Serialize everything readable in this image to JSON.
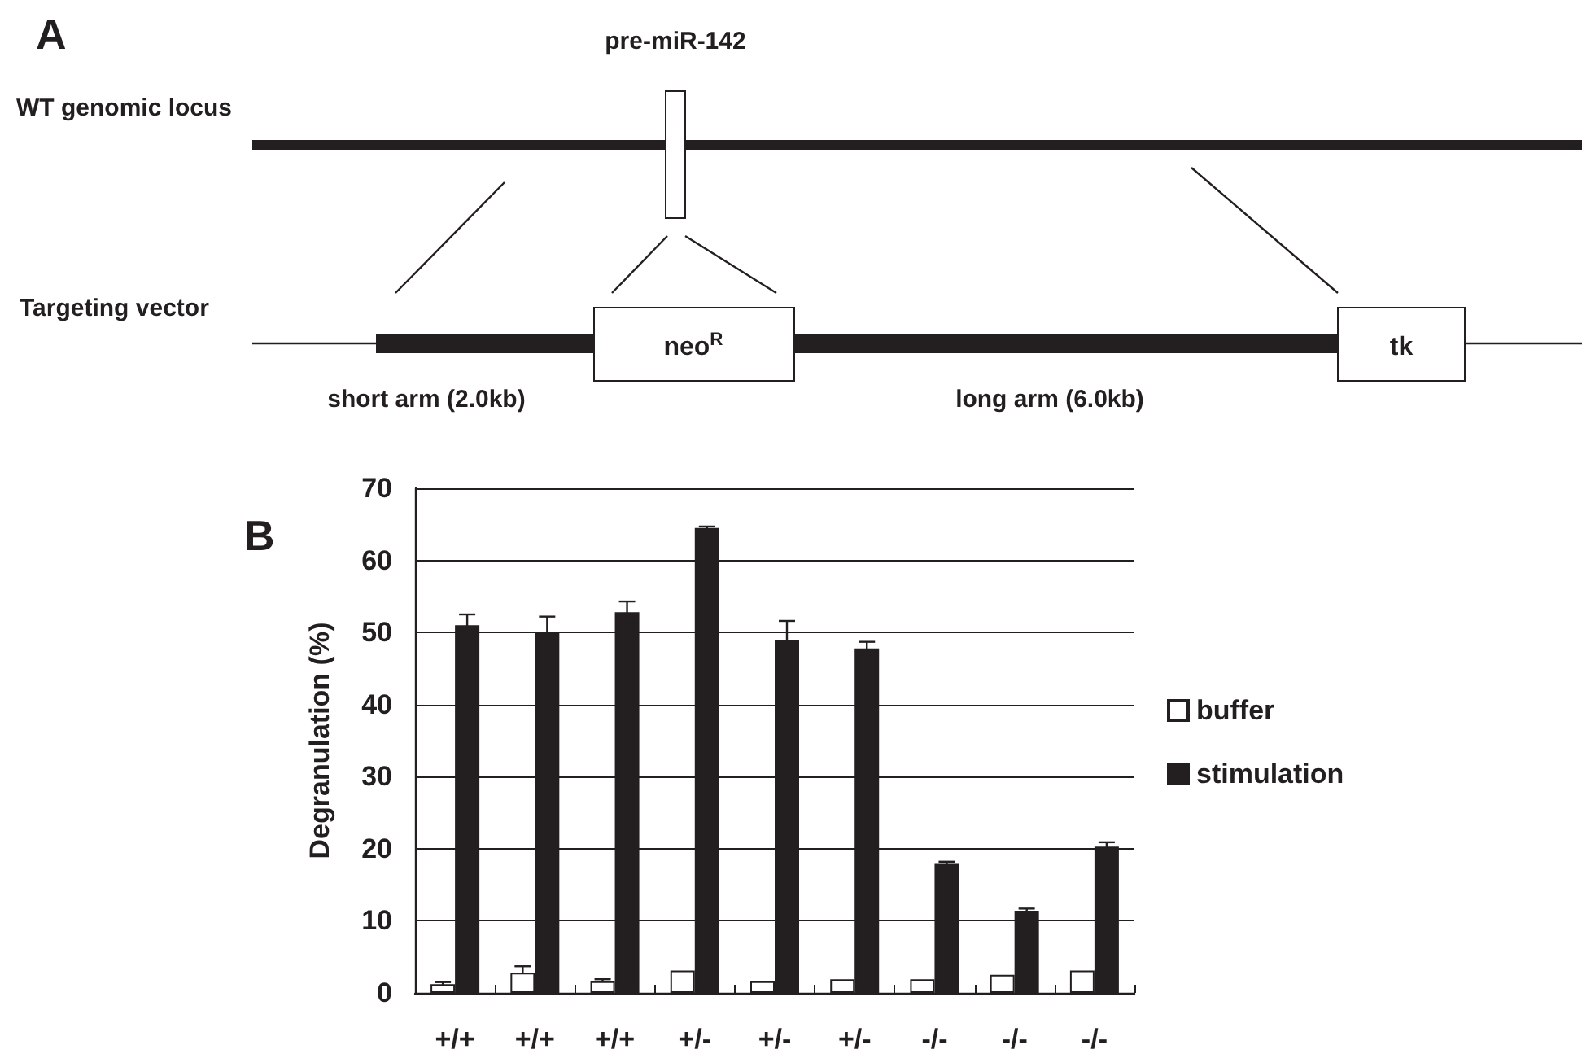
{
  "chart_data": [
    {
      "type": "other",
      "title": "A",
      "annotations": [
        "pre-miR-142",
        "WT genomic locus",
        "Targeting vector",
        "neo$^{R}$",
        "tk",
        "short arm (2.0kb)",
        "long arm (6.0kb)"
      ]
    },
    {
      "type": "bar",
      "title": "B",
      "ylabel": "Degranulation (%)",
      "categories": [
        "+/+",
        "+/+",
        "+/+",
        "+/-",
        "+/-",
        "+/-",
        "-/-",
        "-/-",
        "-/-"
      ],
      "series": [
        {
          "name": "buffer",
          "color": "#ffffff",
          "values": [
            1.2,
            2.8,
            1.6,
            3.1,
            1.6,
            1.9,
            1.9,
            2.5,
            3.1
          ],
          "errors": [
            0.3,
            0.9,
            0.3,
            null,
            null,
            null,
            null,
            null,
            null
          ]
        },
        {
          "name": "stimulation",
          "color": "#231f20",
          "values": [
            51.0,
            50.1,
            52.8,
            64.5,
            48.9,
            47.8,
            17.9,
            11.4,
            20.3
          ],
          "errors": [
            1.5,
            2.1,
            1.5,
            0.2,
            2.7,
            0.9,
            0.3,
            0.3,
            0.6
          ]
        }
      ],
      "ylim": [
        0,
        70
      ],
      "yticks": [
        0,
        10,
        20,
        30,
        40,
        50,
        60,
        70
      ],
      "grid": "y",
      "legend": "right"
    }
  ]
}
